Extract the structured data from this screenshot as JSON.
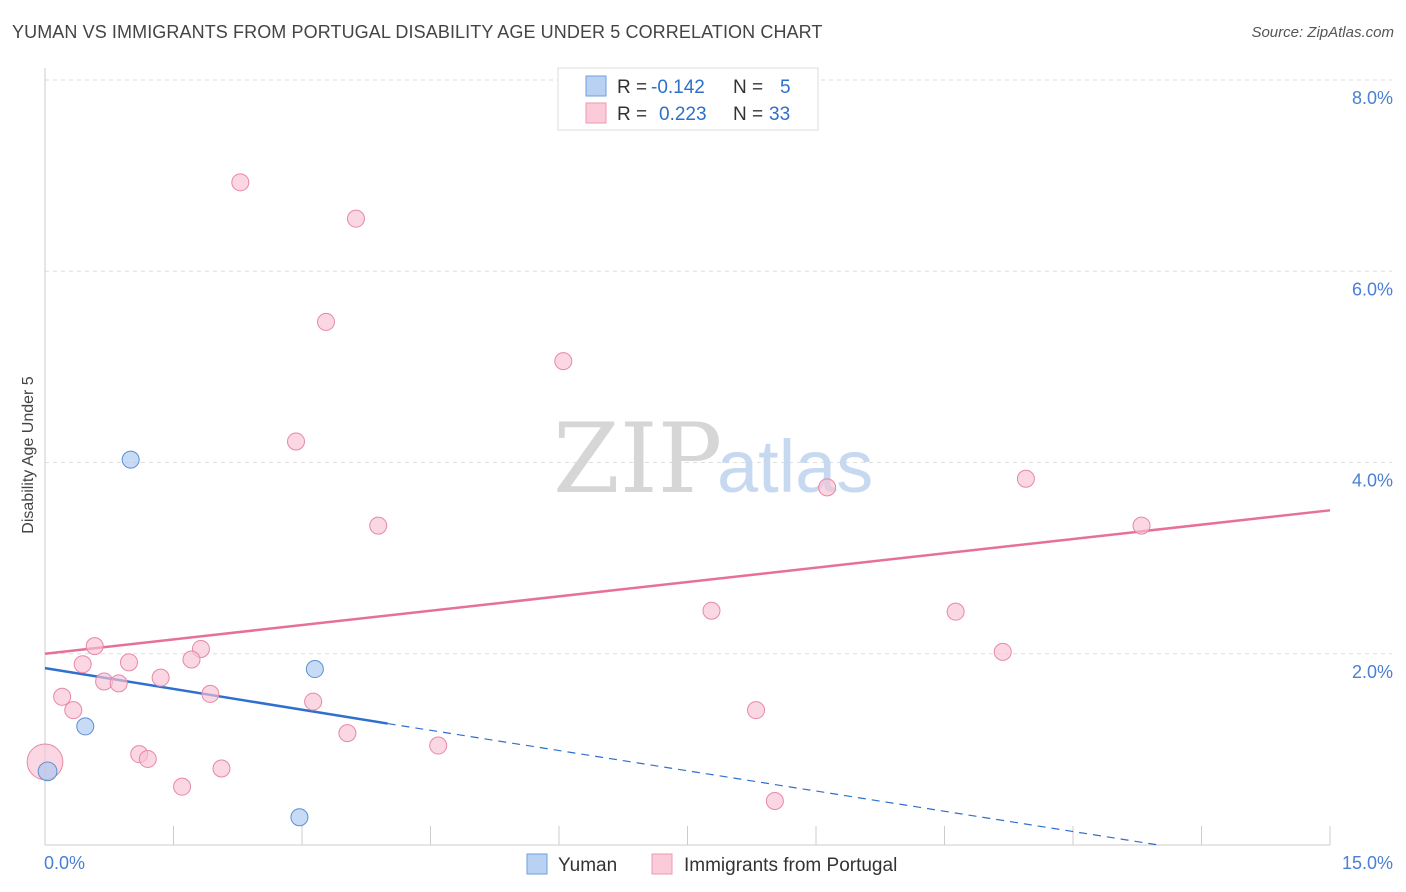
{
  "header": {
    "title": "YUMAN VS IMMIGRANTS FROM PORTUGAL DISABILITY AGE UNDER 5 CORRELATION CHART",
    "source": "Source: ZipAtlas.com"
  },
  "watermark": {
    "zip": "ZIP",
    "atlas": "atlas"
  },
  "chart_data": {
    "type": "scatter",
    "title": "YUMAN VS IMMIGRANTS FROM PORTUGAL DISABILITY AGE UNDER 5 CORRELATION CHART",
    "xlabel": "",
    "ylabel": "Disability Age Under 5",
    "xlim": [
      0,
      15
    ],
    "ylim": [
      0,
      8.0
    ],
    "x_tick_labels": [
      "0.0%",
      "15.0%"
    ],
    "y_ticks": [
      2.0,
      4.0,
      6.0,
      8.0
    ],
    "y_tick_labels": [
      "2.0%",
      "4.0%",
      "6.0%",
      "8.0%"
    ],
    "grid": true,
    "legend": {
      "placement": "top-center",
      "entries": [
        {
          "r_label": "R =",
          "r_value": "-0.142",
          "n_label": "N =",
          "n_value": "5"
        },
        {
          "r_label": "R =",
          "r_value": "0.223",
          "n_label": "N =",
          "n_value": "33"
        }
      ]
    },
    "series": [
      {
        "name": "Yuman",
        "color": "#a9c8f0",
        "edge_color": "#5b8fd6",
        "trend_color": "#2f6fd0",
        "trend": {
          "x0": 0.0,
          "y0": 1.85,
          "x1": 4.0,
          "y1": 1.27,
          "dashed_to_x": 13.0,
          "dashed_to_y": 0.0
        },
        "points": [
          {
            "x": 1.0,
            "y": 4.03,
            "size": 1
          },
          {
            "x": 3.15,
            "y": 1.84,
            "size": 1
          },
          {
            "x": 0.47,
            "y": 1.24,
            "size": 1
          },
          {
            "x": 0.03,
            "y": 0.77,
            "size": 1.1
          },
          {
            "x": 2.97,
            "y": 0.29,
            "size": 1
          }
        ]
      },
      {
        "name": "Immigrants from Portugal",
        "color": "#f8c2d2",
        "edge_color": "#e888a6",
        "trend_color": "#e7709a",
        "trend": {
          "x0": 0.0,
          "y0": 2.0,
          "x1": 15.0,
          "y1": 3.5
        },
        "points": [
          {
            "x": 2.28,
            "y": 6.93,
            "size": 1
          },
          {
            "x": 3.63,
            "y": 6.55,
            "size": 1
          },
          {
            "x": 3.28,
            "y": 5.47,
            "size": 1
          },
          {
            "x": 6.05,
            "y": 5.06,
            "size": 1
          },
          {
            "x": 2.93,
            "y": 4.22,
            "size": 1
          },
          {
            "x": 11.45,
            "y": 3.83,
            "size": 1
          },
          {
            "x": 9.13,
            "y": 3.74,
            "size": 1
          },
          {
            "x": 3.89,
            "y": 3.34,
            "size": 1
          },
          {
            "x": 12.8,
            "y": 3.34,
            "size": 1
          },
          {
            "x": 7.78,
            "y": 2.45,
            "size": 1
          },
          {
            "x": 10.63,
            "y": 2.44,
            "size": 1
          },
          {
            "x": 11.18,
            "y": 2.02,
            "size": 1
          },
          {
            "x": 0.58,
            "y": 2.08,
            "size": 1
          },
          {
            "x": 1.82,
            "y": 2.05,
            "size": 1
          },
          {
            "x": 0.44,
            "y": 1.89,
            "size": 1
          },
          {
            "x": 0.98,
            "y": 1.91,
            "size": 1
          },
          {
            "x": 1.71,
            "y": 1.94,
            "size": 1
          },
          {
            "x": 1.35,
            "y": 1.75,
            "size": 1
          },
          {
            "x": 0.69,
            "y": 1.71,
            "size": 1
          },
          {
            "x": 0.86,
            "y": 1.69,
            "size": 1
          },
          {
            "x": 0.2,
            "y": 1.55,
            "size": 1
          },
          {
            "x": 1.93,
            "y": 1.58,
            "size": 1
          },
          {
            "x": 3.13,
            "y": 1.5,
            "size": 1
          },
          {
            "x": 0.33,
            "y": 1.41,
            "size": 1
          },
          {
            "x": 8.3,
            "y": 1.41,
            "size": 1
          },
          {
            "x": 3.53,
            "y": 1.17,
            "size": 1
          },
          {
            "x": 4.59,
            "y": 1.04,
            "size": 1
          },
          {
            "x": 1.1,
            "y": 0.95,
            "size": 1
          },
          {
            "x": 1.2,
            "y": 0.9,
            "size": 1
          },
          {
            "x": 2.06,
            "y": 0.8,
            "size": 1
          },
          {
            "x": 1.6,
            "y": 0.61,
            "size": 1
          },
          {
            "x": 8.52,
            "y": 0.46,
            "size": 1
          },
          {
            "x": 0.0,
            "y": 0.87,
            "size": 2.1
          }
        ]
      }
    ]
  }
}
